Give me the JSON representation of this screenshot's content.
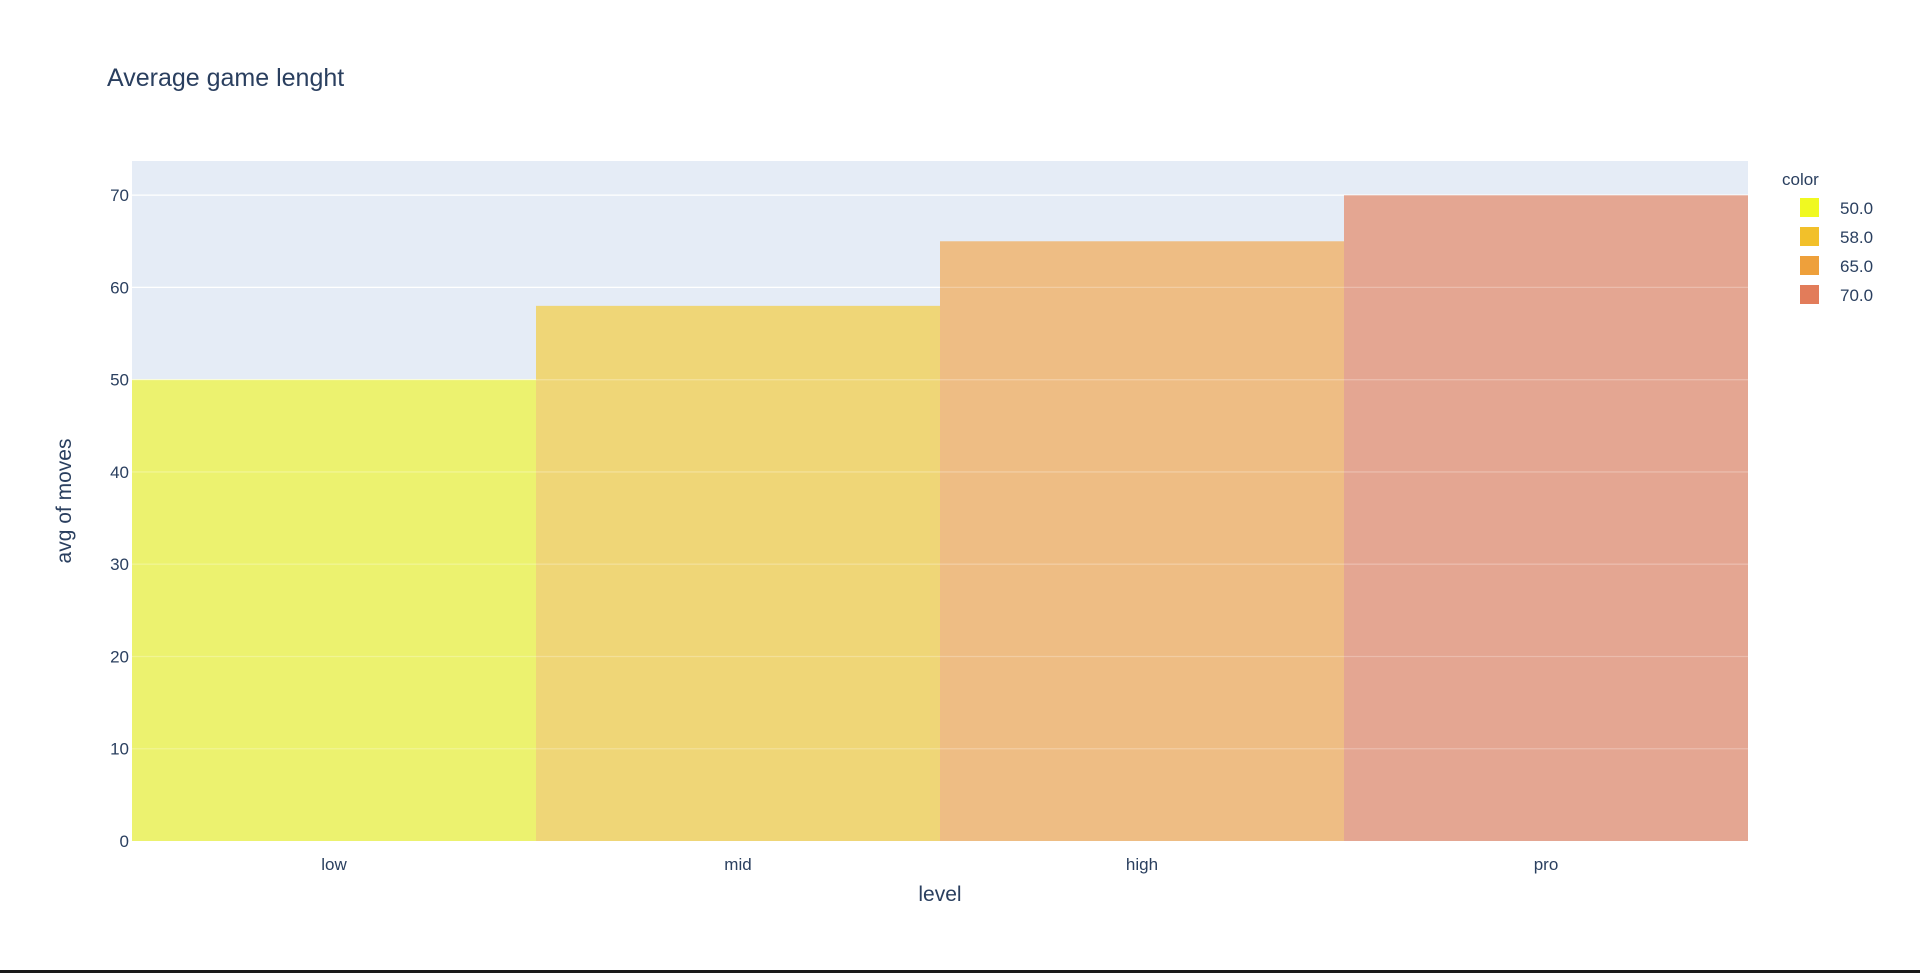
{
  "chart_data": {
    "type": "bar",
    "title": "Average game lenght",
    "xlabel": "level",
    "ylabel": "avg of moves",
    "categories": [
      "low",
      "mid",
      "high",
      "pro"
    ],
    "values": [
      50,
      58,
      65,
      70
    ],
    "ylim": [
      0,
      73.7
    ],
    "yticks": [
      0,
      10,
      20,
      30,
      40,
      50,
      60,
      70
    ],
    "grid": true,
    "bar_colors": [
      "#ecf26f",
      "#efd677",
      "#eebd84",
      "#e4a692"
    ],
    "legend": {
      "title": "color",
      "placement": "top-right",
      "items": [
        {
          "label": "50.0",
          "color": "#f0f921"
        },
        {
          "label": "58.0",
          "color": "#f2c02a"
        },
        {
          "label": "65.0",
          "color": "#eea03b"
        },
        {
          "label": "70.0",
          "color": "#e27c5a"
        }
      ]
    },
    "plot_background": "#e5ecf6"
  }
}
